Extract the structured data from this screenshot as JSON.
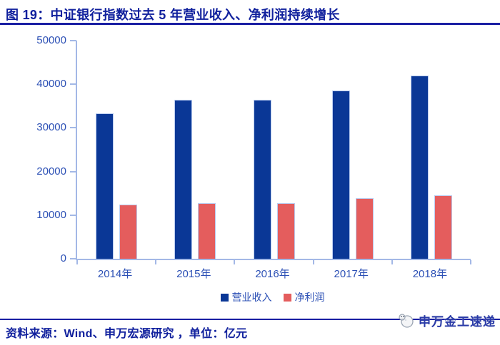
{
  "page": {
    "title": "图 19：中证银行指数过去 5 年营业收入、净利润持续增长",
    "source_note": "资料来源：Wind、申万宏源研究 ，单位：亿元",
    "brand_text": "申万金工速递"
  },
  "colors": {
    "title_navy": "#10209D",
    "rule_navy": "#1A1FA3",
    "axis_label_blue": "#2C50B5",
    "axis_line_blue": "#A3B8E6",
    "revenue_bar_blue": "#0A3796",
    "profit_bar_red": "#E45D5D"
  },
  "chart_data": {
    "type": "bar",
    "title": "",
    "categories": [
      "2014年",
      "2015年",
      "2016年",
      "2017年",
      "2018年"
    ],
    "series": [
      {
        "key": "revenue",
        "name": "营业收入",
        "color": "#0A3796",
        "values": [
          33400,
          36400,
          36500,
          38600,
          42000
        ]
      },
      {
        "key": "net-profit",
        "name": "净利润",
        "color": "#E45D5D",
        "values": [
          12400,
          12700,
          12800,
          13900,
          14600
        ]
      }
    ],
    "ylim": [
      0,
      50000
    ],
    "ytick_interval": 10000,
    "ytick_labels": [
      "0",
      "10000",
      "20000",
      "30000",
      "40000",
      "50000"
    ],
    "grid": false,
    "legend_position": "bottom",
    "unit": "亿元"
  }
}
